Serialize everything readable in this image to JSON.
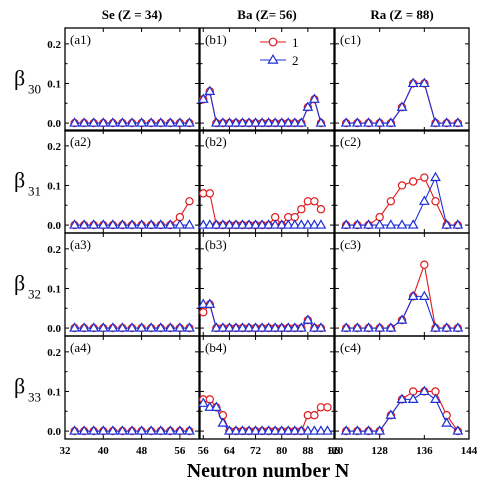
{
  "chart_data": {
    "type": "line",
    "xlabel": "Neutron number N",
    "column_titles": [
      "Se (Z = 34)",
      "Ba (Z= 56)",
      "Ra (Z = 88)"
    ],
    "row_labels": [
      {
        "symbol": "β",
        "sub": "30"
      },
      {
        "symbol": "β",
        "sub": "31"
      },
      {
        "symbol": "β",
        "sub": "32"
      },
      {
        "symbol": "β",
        "sub": "33"
      }
    ],
    "y_ticks": [
      "0.0",
      "0.1",
      "0.2"
    ],
    "ylim": [
      -0.02,
      0.24
    ],
    "legend": {
      "series": [
        "1",
        "2"
      ],
      "placement": "top-right of panel (b1)"
    },
    "series_style": {
      "1": {
        "color": "#e0191b",
        "marker": "circle"
      },
      "2": {
        "color": "#1c2fd6",
        "marker": "triangle"
      }
    },
    "columns": [
      {
        "xlim": [
          32,
          60
        ],
        "x_ticks": [
          "32",
          "40",
          "48",
          "56"
        ],
        "x_tick_values": [
          32,
          40,
          48,
          56
        ],
        "x": [
          34,
          36,
          38,
          40,
          42,
          44,
          46,
          48,
          50,
          52,
          54,
          56,
          58
        ],
        "panels": [
          {
            "label": "(a1)",
            "series": [
              {
                "name": "1",
                "values": [
                  0,
                  0,
                  0,
                  0,
                  0,
                  0,
                  0,
                  0,
                  0,
                  0,
                  0,
                  0,
                  0
                ]
              },
              {
                "name": "2",
                "values": [
                  0,
                  0,
                  0,
                  0,
                  0,
                  0,
                  0,
                  0,
                  0,
                  0,
                  0,
                  0,
                  0
                ]
              }
            ]
          },
          {
            "label": "(a2)",
            "series": [
              {
                "name": "1",
                "values": [
                  0,
                  0,
                  0,
                  0,
                  0,
                  0,
                  0,
                  0,
                  0,
                  0,
                  0,
                  0.02,
                  0.06
                ]
              },
              {
                "name": "2",
                "values": [
                  0,
                  0,
                  0,
                  0,
                  0,
                  0,
                  0,
                  0,
                  0,
                  0,
                  0,
                  0,
                  0
                ]
              }
            ]
          },
          {
            "label": "(a3)",
            "series": [
              {
                "name": "1",
                "values": [
                  0,
                  0,
                  0,
                  0,
                  0,
                  0,
                  0,
                  0,
                  0,
                  0,
                  0,
                  0,
                  0
                ]
              },
              {
                "name": "2",
                "values": [
                  0,
                  0,
                  0,
                  0,
                  0,
                  0,
                  0,
                  0,
                  0,
                  0,
                  0,
                  0,
                  0
                ]
              }
            ]
          },
          {
            "label": "(a4)",
            "series": [
              {
                "name": "1",
                "values": [
                  0,
                  0,
                  0,
                  0,
                  0,
                  0,
                  0,
                  0,
                  0,
                  0,
                  0,
                  0,
                  0
                ]
              },
              {
                "name": "2",
                "values": [
                  0,
                  0,
                  0,
                  0,
                  0,
                  0,
                  0,
                  0,
                  0,
                  0,
                  0,
                  0,
                  0
                ]
              }
            ]
          }
        ]
      },
      {
        "xlim": [
          55,
          96
        ],
        "x_ticks": [
          "56",
          "64",
          "72",
          "80",
          "88",
          "96"
        ],
        "x_tick_values": [
          56,
          64,
          72,
          80,
          88,
          96
        ],
        "x": [
          56,
          58,
          60,
          62,
          64,
          66,
          68,
          70,
          72,
          74,
          76,
          78,
          80,
          82,
          84,
          86,
          88,
          90,
          92,
          94
        ],
        "panels": [
          {
            "label": "(b1)",
            "series": [
              {
                "name": "1",
                "values": [
                  0.06,
                  0.08,
                  0,
                  0,
                  0,
                  0,
                  0,
                  0,
                  0,
                  0,
                  0,
                  0,
                  0,
                  0,
                  0,
                  0,
                  0.04,
                  0.06,
                  0,
                  null
                ]
              },
              {
                "name": "2",
                "values": [
                  0.06,
                  0.08,
                  0,
                  0,
                  0,
                  0,
                  0,
                  0,
                  0,
                  0,
                  0,
                  0,
                  0,
                  0,
                  0,
                  0,
                  0.04,
                  0.06,
                  0,
                  null
                ]
              }
            ]
          },
          {
            "label": "(b2)",
            "series": [
              {
                "name": "1",
                "values": [
                  0.08,
                  0.08,
                  0,
                  0,
                  0,
                  0,
                  0,
                  0,
                  0,
                  0,
                  0,
                  0.02,
                  0,
                  0.02,
                  0.02,
                  0.04,
                  0.06,
                  0.06,
                  0.04,
                  null
                ]
              },
              {
                "name": "2",
                "values": [
                  0,
                  0,
                  0,
                  0,
                  0,
                  0,
                  0,
                  0,
                  0,
                  0,
                  0,
                  0,
                  0,
                  0,
                  0,
                  0,
                  0,
                  0,
                  0,
                  null
                ]
              }
            ]
          },
          {
            "label": "(b3)",
            "series": [
              {
                "name": "1",
                "values": [
                  0.04,
                  0.06,
                  0,
                  0,
                  0,
                  0,
                  0,
                  0,
                  0,
                  0,
                  0,
                  0,
                  0,
                  0,
                  0,
                  0,
                  0.02,
                  0,
                  0,
                  null
                ]
              },
              {
                "name": "2",
                "values": [
                  0.06,
                  0.06,
                  0,
                  0,
                  0,
                  0,
                  0,
                  0,
                  0,
                  0,
                  0,
                  0,
                  0,
                  0,
                  0,
                  0,
                  0.02,
                  0,
                  0,
                  null
                ]
              }
            ]
          },
          {
            "label": "(b4)",
            "series": [
              {
                "name": "1",
                "values": [
                  0.08,
                  0.08,
                  0.06,
                  0.04,
                  0,
                  0,
                  0,
                  0,
                  0,
                  0,
                  0,
                  0,
                  0,
                  0,
                  0,
                  0,
                  0.04,
                  0.04,
                  0.06,
                  0.06
                ]
              },
              {
                "name": "2",
                "values": [
                  0.07,
                  0.06,
                  0.06,
                  0.02,
                  0,
                  0,
                  0,
                  0,
                  0,
                  0,
                  0,
                  0,
                  0,
                  0,
                  0,
                  0,
                  0,
                  0,
                  0,
                  0
                ]
              }
            ]
          }
        ]
      },
      {
        "xlim": [
          120,
          144
        ],
        "x_ticks": [
          "120",
          "128",
          "136",
          "144"
        ],
        "x_tick_values": [
          120,
          128,
          136,
          144
        ],
        "x": [
          122,
          124,
          126,
          128,
          130,
          132,
          134,
          136,
          138,
          140,
          142
        ],
        "panels": [
          {
            "label": "(c1)",
            "series": [
              {
                "name": "1",
                "values": [
                  0,
                  0,
                  0,
                  0,
                  0,
                  0.04,
                  0.1,
                  0.1,
                  0,
                  0,
                  0
                ]
              },
              {
                "name": "2",
                "values": [
                  0,
                  0,
                  0,
                  0,
                  0,
                  0.04,
                  0.1,
                  0.1,
                  0,
                  0,
                  0
                ]
              }
            ]
          },
          {
            "label": "(c2)",
            "series": [
              {
                "name": "1",
                "values": [
                  0,
                  0,
                  0,
                  0.02,
                  0.06,
                  0.1,
                  0.11,
                  0.12,
                  0.06,
                  0,
                  0
                ]
              },
              {
                "name": "2",
                "values": [
                  0,
                  0,
                  0,
                  0,
                  0,
                  0,
                  0,
                  0.06,
                  0.12,
                  0,
                  0
                ]
              }
            ]
          },
          {
            "label": "(c3)",
            "series": [
              {
                "name": "1",
                "values": [
                  0,
                  0,
                  0,
                  0,
                  0,
                  0.02,
                  0.08,
                  0.16,
                  0,
                  0,
                  0
                ]
              },
              {
                "name": "2",
                "values": [
                  0,
                  0,
                  0,
                  0,
                  0,
                  0.02,
                  0.08,
                  0.08,
                  0,
                  0,
                  0
                ]
              }
            ]
          },
          {
            "label": "(c4)",
            "series": [
              {
                "name": "1",
                "values": [
                  0,
                  0,
                  0,
                  0,
                  0.04,
                  0.08,
                  0.1,
                  0.1,
                  0.1,
                  0.04,
                  0
                ]
              },
              {
                "name": "2",
                "values": [
                  0,
                  0,
                  0,
                  0,
                  0.04,
                  0.08,
                  0.08,
                  0.1,
                  0.08,
                  0.02,
                  0
                ]
              }
            ]
          }
        ]
      }
    ]
  }
}
